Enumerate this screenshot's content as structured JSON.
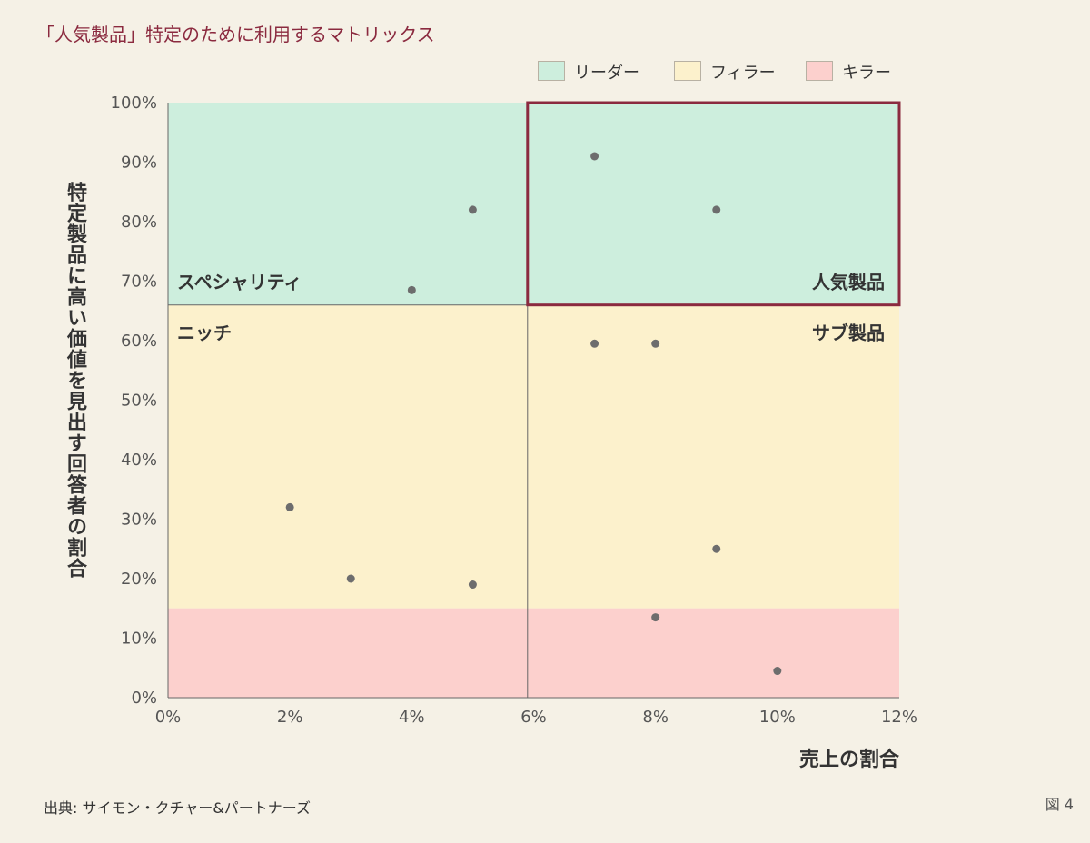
{
  "title": "「人気製品」特定のために利用するマトリックス",
  "source": "出典: サイモン・クチャー&パートナーズ",
  "figure_label": "図 4",
  "colors": {
    "title": "#8b2a3f",
    "leader": "#cdeedd",
    "filler": "#fcf1cc",
    "killer": "#fcd0cd",
    "highlight_border": "#8b2a3f",
    "point": "#6d6d6d",
    "axis": "#666666"
  },
  "legend": [
    {
      "label": "リーダー",
      "color": "#cdeedd"
    },
    {
      "label": "フィラー",
      "color": "#fcf1cc"
    },
    {
      "label": "キラー",
      "color": "#fcd0cd"
    }
  ],
  "chart_data": {
    "type": "scatter",
    "xlabel": "売上の割合",
    "ylabel": "特定製品に高い価値を見出す回答者の割合",
    "xlim": [
      0,
      12
    ],
    "ylim": [
      0,
      100
    ],
    "x_ticks": [
      0,
      2,
      4,
      6,
      8,
      10,
      12
    ],
    "x_tick_labels": [
      "0%",
      "2%",
      "4%",
      "6%",
      "8%",
      "10%",
      "12%"
    ],
    "y_ticks": [
      0,
      10,
      20,
      30,
      40,
      50,
      60,
      70,
      80,
      90,
      100
    ],
    "y_tick_labels": [
      "0%",
      "10%",
      "20%",
      "30%",
      "40%",
      "50%",
      "60%",
      "70%",
      "80%",
      "90%",
      "100%"
    ],
    "x_divider": 5.9,
    "bands": [
      {
        "name": "リーダー",
        "y_from": 66,
        "y_to": 100
      },
      {
        "name": "フィラー",
        "y_from": 15,
        "y_to": 66
      },
      {
        "name": "キラー",
        "y_from": 0,
        "y_to": 15
      }
    ],
    "highlight_region": {
      "x_from": 5.9,
      "x_to": 12,
      "y_from": 66,
      "y_to": 100
    },
    "quadrant_labels": [
      {
        "text": "スペシャリティ",
        "position": "top-left"
      },
      {
        "text": "人気製品",
        "position": "top-right"
      },
      {
        "text": "ニッチ",
        "position": "middle-left"
      },
      {
        "text": "サブ製品",
        "position": "middle-right"
      }
    ],
    "points": [
      {
        "x": 7,
        "y": 91
      },
      {
        "x": 9,
        "y": 82
      },
      {
        "x": 5,
        "y": 82
      },
      {
        "x": 4,
        "y": 68.5
      },
      {
        "x": 7,
        "y": 59.5
      },
      {
        "x": 8,
        "y": 59.5
      },
      {
        "x": 2,
        "y": 32
      },
      {
        "x": 9,
        "y": 25
      },
      {
        "x": 3,
        "y": 20
      },
      {
        "x": 5,
        "y": 19
      },
      {
        "x": 8,
        "y": 13.5
      },
      {
        "x": 10,
        "y": 4.5
      }
    ]
  }
}
